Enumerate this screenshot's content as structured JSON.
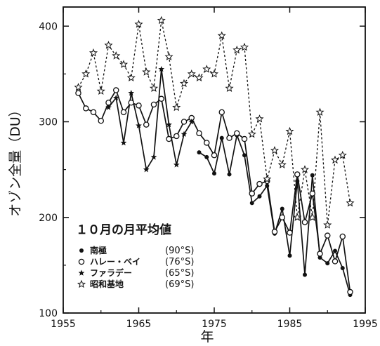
{
  "chart_data": {
    "type": "line",
    "title": "",
    "xlabel": "年",
    "ylabel": "オゾン全量（DU）",
    "xlim": [
      1955,
      1995
    ],
    "ylim": [
      100,
      420
    ],
    "xticks": [
      1955,
      1965,
      1975,
      1985,
      1995
    ],
    "yticks": [
      100,
      200,
      300,
      400
    ],
    "grid": false,
    "legend": {
      "title": "１０月の月平均値",
      "placement": "bottom-left"
    },
    "series": [
      {
        "name": "南極",
        "latitude": "(90°S)",
        "marker": "dot",
        "line": "solid",
        "x": [
          1973,
          1974,
          1975,
          1976,
          1977,
          1978,
          1979,
          1980,
          1981,
          1982,
          1983,
          1984,
          1985,
          1986,
          1987,
          1988,
          1989,
          1990,
          1991,
          1992,
          1993
        ],
        "y": [
          268,
          263,
          246,
          283,
          245,
          286,
          265,
          215,
          222,
          233,
          183,
          209,
          160,
          238,
          140,
          244,
          158,
          152,
          165,
          147,
          119
        ]
      },
      {
        "name": "ハレー・ベイ",
        "latitude": "(76°S)",
        "marker": "open-circle",
        "line": "solid",
        "x": [
          1957,
          1958,
          1959,
          1960,
          1961,
          1962,
          1963,
          1964,
          1965,
          1966,
          1967,
          1968,
          1969,
          1970,
          1971,
          1972,
          1973,
          1974,
          1975,
          1976,
          1977,
          1978,
          1979,
          1980,
          1981,
          1982,
          1983,
          1984,
          1985,
          1986,
          1987,
          1988,
          1989,
          1990,
          1991,
          1992,
          1993
        ],
        "y": [
          330,
          314,
          310,
          301,
          320,
          333,
          310,
          320,
          317,
          297,
          318,
          324,
          282,
          285,
          300,
          304,
          288,
          278,
          265,
          310,
          283,
          288,
          282,
          225,
          235,
          238,
          185,
          200,
          184,
          245,
          195,
          225,
          162,
          181,
          154,
          180,
          122
        ]
      },
      {
        "name": "ファラデー",
        "latitude": "(65°S)",
        "marker": "filled-star",
        "line": "solid",
        "x": [
          1961,
          1962,
          1963,
          1964,
          1965,
          1966,
          1967,
          1968,
          1969,
          1970,
          1971,
          1972
        ],
        "y": [
          315,
          325,
          278,
          330,
          296,
          250,
          263,
          355,
          297,
          255,
          287,
          300
        ]
      },
      {
        "name": "昭和基地",
        "latitude": "(69°S)",
        "marker": "open-star",
        "line": "dashed",
        "x": [
          1957,
          1958,
          1959,
          1960,
          1961,
          1962,
          1963,
          1964,
          1965,
          1966,
          1967,
          1968,
          1969,
          1970,
          1971,
          1972,
          1973,
          1974,
          1975,
          1976,
          1977,
          1978,
          1979,
          1980,
          1981,
          1982,
          1983,
          1984,
          1985,
          1986,
          1987,
          1988,
          1989,
          1990,
          1991,
          1992,
          1993
        ],
        "y": [
          336,
          350,
          372,
          332,
          380,
          369,
          360,
          346,
          402,
          352,
          335,
          406,
          368,
          315,
          340,
          350,
          346,
          355,
          350,
          390,
          335,
          375,
          378,
          287,
          303,
          240,
          270,
          255,
          290,
          200,
          250,
          200,
          310,
          192,
          260,
          265,
          215
        ]
      }
    ]
  }
}
